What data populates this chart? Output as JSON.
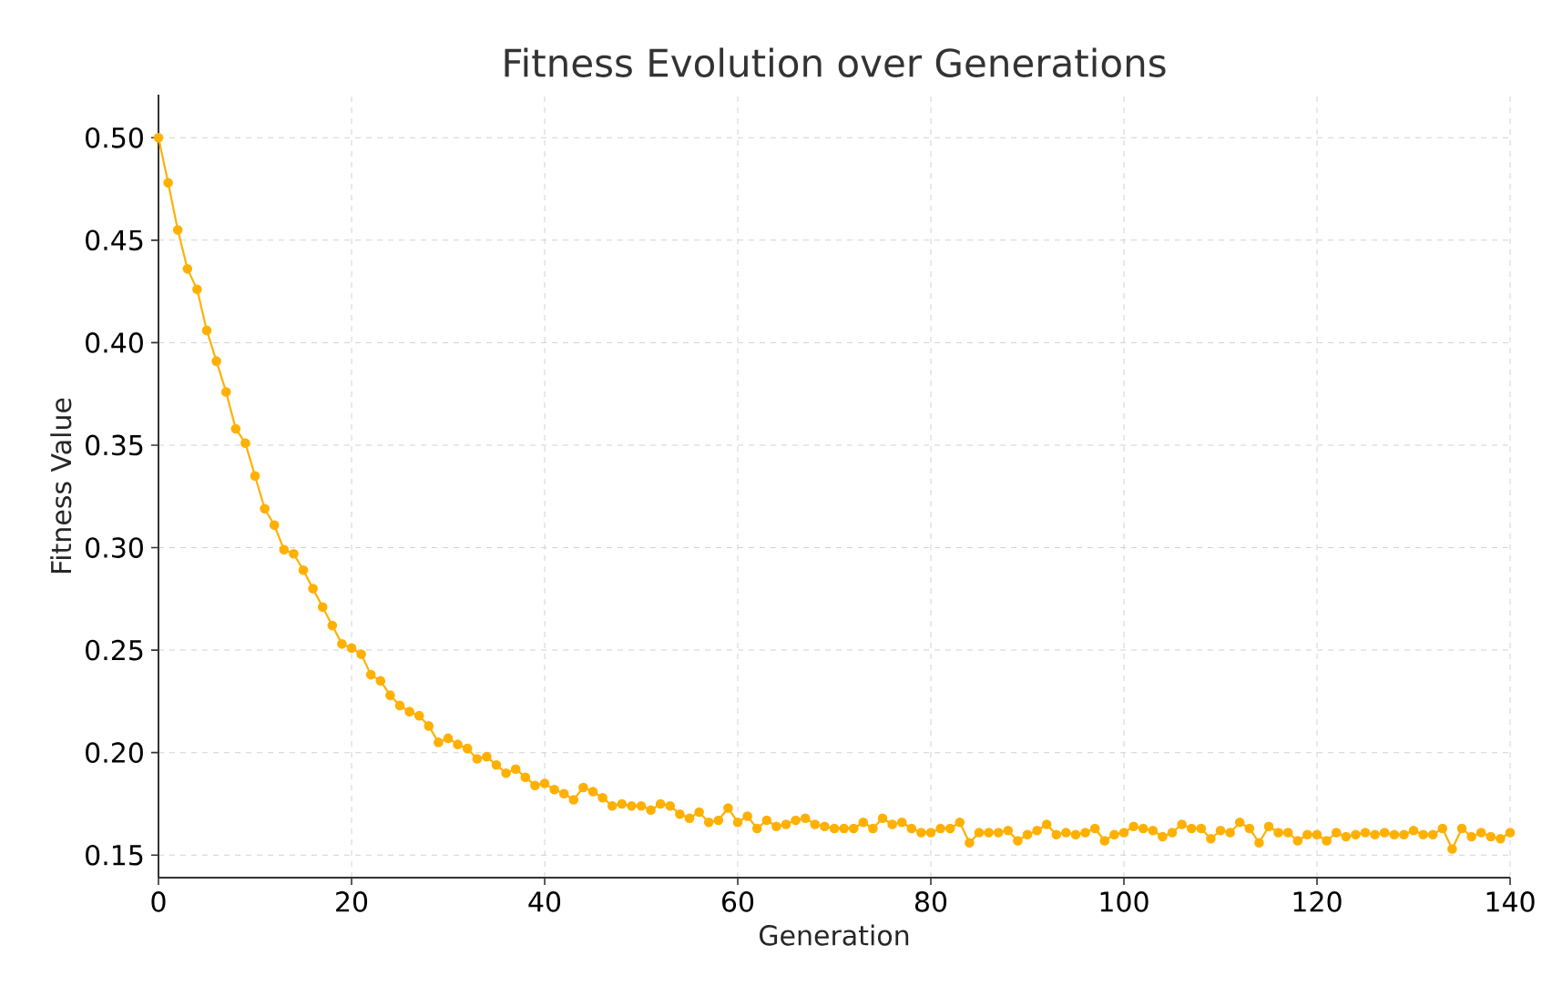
{
  "chart_data": {
    "type": "line",
    "title": "Fitness Evolution over Generations",
    "xlabel": "Generation",
    "ylabel": "Fitness Value",
    "x": [
      0,
      1,
      2,
      3,
      4,
      5,
      6,
      7,
      8,
      9,
      10,
      11,
      12,
      13,
      14,
      15,
      16,
      17,
      18,
      19,
      20,
      21,
      22,
      23,
      24,
      25,
      26,
      27,
      28,
      29,
      30,
      31,
      32,
      33,
      34,
      35,
      36,
      37,
      38,
      39,
      40,
      41,
      42,
      43,
      44,
      45,
      46,
      47,
      48,
      49,
      50,
      51,
      52,
      53,
      54,
      55,
      56,
      57,
      58,
      59,
      60,
      61,
      62,
      63,
      64,
      65,
      66,
      67,
      68,
      69,
      70,
      71,
      72,
      73,
      74,
      75,
      76,
      77,
      78,
      79,
      80,
      81,
      82,
      83,
      84,
      85,
      86,
      87,
      88,
      89,
      90,
      91,
      92,
      93,
      94,
      95,
      96,
      97,
      98,
      99,
      100,
      101,
      102,
      103,
      104,
      105,
      106,
      107,
      108,
      109,
      110,
      111,
      112,
      113,
      114,
      115,
      116,
      117,
      118,
      119,
      120,
      121,
      122,
      123,
      124,
      125,
      126,
      127,
      128,
      129,
      130,
      131,
      132,
      133,
      134,
      135,
      136,
      137,
      138,
      139,
      140
    ],
    "series": [
      {
        "color": "#ffb000",
        "values": [
          0.5,
          0.478,
          0.455,
          0.436,
          0.426,
          0.406,
          0.391,
          0.376,
          0.358,
          0.351,
          0.335,
          0.319,
          0.311,
          0.299,
          0.297,
          0.289,
          0.28,
          0.271,
          0.262,
          0.253,
          0.251,
          0.248,
          0.238,
          0.235,
          0.228,
          0.223,
          0.22,
          0.218,
          0.213,
          0.205,
          0.207,
          0.204,
          0.202,
          0.197,
          0.198,
          0.194,
          0.19,
          0.192,
          0.188,
          0.184,
          0.185,
          0.182,
          0.18,
          0.177,
          0.183,
          0.181,
          0.178,
          0.174,
          0.175,
          0.174,
          0.174,
          0.172,
          0.175,
          0.174,
          0.17,
          0.168,
          0.171,
          0.166,
          0.167,
          0.173,
          0.166,
          0.169,
          0.163,
          0.167,
          0.164,
          0.165,
          0.167,
          0.168,
          0.165,
          0.164,
          0.163,
          0.163,
          0.163,
          0.166,
          0.163,
          0.168,
          0.165,
          0.166,
          0.163,
          0.161,
          0.161,
          0.163,
          0.163,
          0.166,
          0.156,
          0.161,
          0.161,
          0.161,
          0.162,
          0.157,
          0.16,
          0.162,
          0.165,
          0.16,
          0.161,
          0.16,
          0.161,
          0.163,
          0.157,
          0.16,
          0.161,
          0.164,
          0.163,
          0.162,
          0.159,
          0.161,
          0.165,
          0.163,
          0.163,
          0.158,
          0.162,
          0.161,
          0.166,
          0.163,
          0.156,
          0.164,
          0.161,
          0.161,
          0.157,
          0.16,
          0.16,
          0.157,
          0.161,
          0.159,
          0.16,
          0.161,
          0.16,
          0.161,
          0.16,
          0.16,
          0.162,
          0.16,
          0.16,
          0.163,
          0.153,
          0.163,
          0.159,
          0.161,
          0.159,
          0.158,
          0.161
        ]
      }
    ],
    "xlim": [
      0,
      140
    ],
    "ylim": [
      0.139,
      0.521
    ],
    "xticks": [
      0,
      20,
      40,
      60,
      80,
      100,
      120,
      140
    ],
    "yticks": [
      {
        "value": 0.15,
        "label": "0.15"
      },
      {
        "value": 0.2,
        "label": "0.20"
      },
      {
        "value": 0.25,
        "label": "0.25"
      },
      {
        "value": 0.3,
        "label": "0.30"
      },
      {
        "value": 0.35,
        "label": "0.35"
      },
      {
        "value": 0.4,
        "label": "0.40"
      },
      {
        "value": 0.45,
        "label": "0.45"
      },
      {
        "value": 0.5,
        "label": "0.50"
      }
    ],
    "grid": true,
    "marker": "circle",
    "line_style": "solid"
  }
}
